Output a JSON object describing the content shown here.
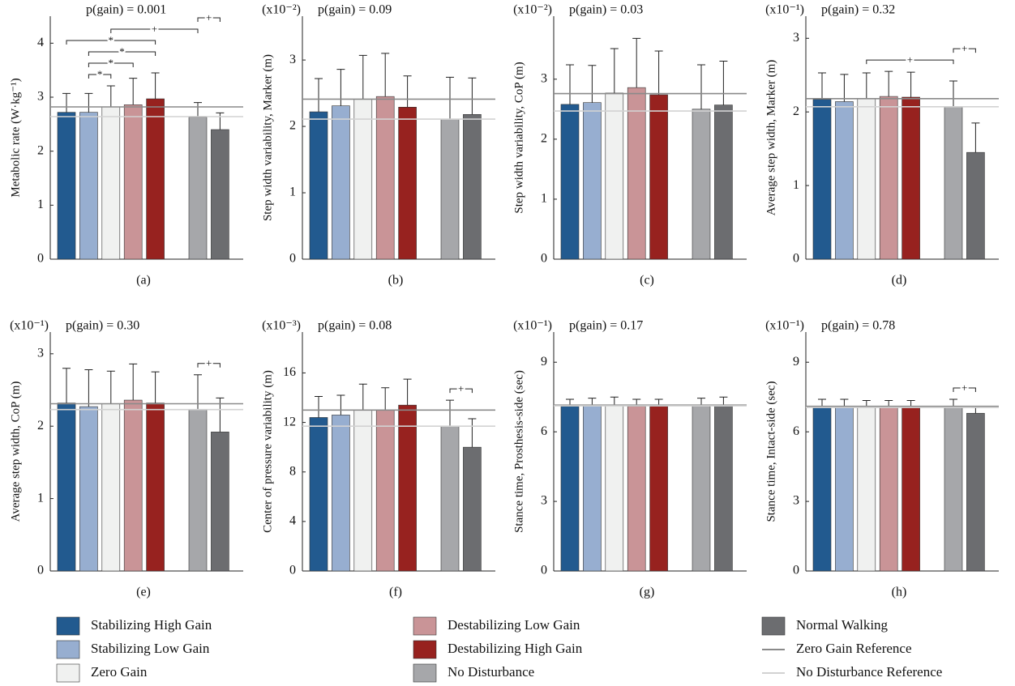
{
  "chart_data": [
    {
      "type": "bar",
      "label": "(a)",
      "title": "p(gain) = 0.001",
      "ylabel": "Metabolic rate  (W·kg⁻¹)",
      "values": [
        2.72,
        2.72,
        2.82,
        2.86,
        2.97,
        2.63,
        2.4
      ],
      "errors": [
        0.35,
        0.35,
        0.39,
        0.49,
        0.48,
        0.27,
        0.31
      ],
      "reference_lines": [
        2.82,
        2.64
      ],
      "ylim": [
        0,
        4.5
      ],
      "yticks": [
        0,
        1,
        2,
        3,
        4
      ],
      "brackets": [
        {
          "bars": [
            1,
            2
          ],
          "label": "*"
        },
        {
          "bars": [
            1,
            3
          ],
          "label": "*"
        },
        {
          "bars": [
            1,
            4
          ],
          "label": "*"
        },
        {
          "bars": [
            0,
            4
          ],
          "label": "*"
        },
        {
          "bars": [
            2,
            5
          ],
          "label": "+"
        },
        {
          "bars": [
            5,
            6
          ],
          "label": "+"
        }
      ]
    },
    {
      "type": "bar",
      "label": "(b)",
      "multiplier": "(x10⁻²)",
      "title": "p(gain) = 0.09",
      "ylabel": "Step width variability, Marker  (m)",
      "values": [
        2.22,
        2.31,
        2.41,
        2.45,
        2.29,
        2.11,
        2.18
      ],
      "errors": [
        0.5,
        0.55,
        0.66,
        0.65,
        0.47,
        0.63,
        0.55
      ],
      "reference_lines": [
        2.41,
        2.11
      ],
      "ylim": [
        0,
        3.66
      ],
      "yticks": [
        0,
        1,
        2,
        3
      ],
      "brackets": []
    },
    {
      "type": "bar",
      "label": "(c)",
      "multiplier": "(x10⁻²)",
      "title": "p(gain) = 0.03",
      "ylabel": "Step width variability, CoP  (m)",
      "values": [
        2.58,
        2.61,
        2.77,
        2.86,
        2.74,
        2.5,
        2.57
      ],
      "errors": [
        0.66,
        0.62,
        0.74,
        0.82,
        0.73,
        0.74,
        0.73
      ],
      "reference_lines": [
        2.76,
        2.47
      ],
      "ylim": [
        0,
        4.05
      ],
      "yticks": [
        0,
        1,
        2,
        3
      ],
      "brackets": []
    },
    {
      "type": "bar",
      "label": "(d)",
      "multiplier": "(x10⁻¹)",
      "title": "p(gain) = 0.32",
      "ylabel": "Average step width, Marker (m)",
      "values": [
        2.17,
        2.14,
        2.18,
        2.21,
        2.2,
        2.07,
        1.45
      ],
      "errors": [
        0.36,
        0.37,
        0.35,
        0.34,
        0.34,
        0.35,
        0.4
      ],
      "reference_lines": [
        2.18,
        2.07
      ],
      "ylim": [
        0,
        3.3
      ],
      "yticks": [
        0,
        1,
        2,
        3
      ],
      "brackets": [
        {
          "bars": [
            2,
            5
          ],
          "label": "+"
        },
        {
          "bars": [
            5,
            6
          ],
          "label": "+"
        }
      ]
    },
    {
      "type": "bar",
      "label": "(e)",
      "multiplier": "(x10⁻¹)",
      "title": "p(gain) = 0.30",
      "ylabel": "Average step width, CoP (m)",
      "values": [
        2.32,
        2.27,
        2.31,
        2.36,
        2.32,
        2.23,
        1.92
      ],
      "errors": [
        0.48,
        0.51,
        0.45,
        0.5,
        0.43,
        0.48,
        0.47
      ],
      "reference_lines": [
        2.31,
        2.23
      ],
      "ylim": [
        0,
        3.3
      ],
      "yticks": [
        0,
        1,
        2,
        3
      ],
      "brackets": [
        {
          "bars": [
            5,
            6
          ],
          "label": "+"
        }
      ]
    },
    {
      "type": "bar",
      "label": "(f)",
      "multiplier": "(x10⁻³)",
      "title": "p(gain) = 0.08",
      "ylabel": "Center of pressure variability (m)",
      "values": [
        12.4,
        12.6,
        13.0,
        13.0,
        13.4,
        11.7,
        10.0
      ],
      "errors": [
        1.7,
        1.6,
        2.1,
        1.8,
        2.1,
        2.1,
        2.3
      ],
      "reference_lines": [
        13.0,
        11.7
      ],
      "ylim": [
        0,
        19.3
      ],
      "yticks": [
        0,
        4,
        8,
        12,
        16
      ],
      "brackets": [
        {
          "bars": [
            5,
            6
          ],
          "label": "+"
        }
      ]
    },
    {
      "type": "bar",
      "label": "(g)",
      "multiplier": "(x10⁻¹)",
      "title": "p(gain) = 0.17",
      "ylabel": "Stance time, Prosthesis-side (sec)",
      "values": [
        7.1,
        7.15,
        7.15,
        7.1,
        7.1,
        7.15,
        7.15
      ],
      "errors": [
        0.3,
        0.3,
        0.35,
        0.3,
        0.3,
        0.3,
        0.35
      ],
      "reference_lines": [
        7.15,
        7.12
      ],
      "ylim": [
        0,
        10.3
      ],
      "yticks": [
        0,
        3,
        6,
        9
      ],
      "brackets": []
    },
    {
      "type": "bar",
      "label": "(h)",
      "multiplier": "(x10⁻¹)",
      "title": "p(gain) = 0.78",
      "ylabel": "Stance time, Intact-side (sec)",
      "values": [
        7.1,
        7.1,
        7.05,
        7.05,
        7.05,
        7.1,
        6.8
      ],
      "errors": [
        0.3,
        0.3,
        0.3,
        0.3,
        0.3,
        0.3,
        0.25
      ],
      "reference_lines": [
        7.1,
        7.05
      ],
      "ylim": [
        0,
        10.3
      ],
      "yticks": [
        0,
        3,
        6,
        9
      ],
      "brackets": [
        {
          "bars": [
            5,
            6
          ],
          "label": "+"
        }
      ]
    }
  ],
  "legend": {
    "bars": [
      {
        "name": "Stabilizing High Gain",
        "color": "#225a8f"
      },
      {
        "name": "Stabilizing Low Gain",
        "color": "#97aed0"
      },
      {
        "name": "Zero Gain",
        "color": "#f0f1f0"
      },
      {
        "name": "Destabilizing Low Gain",
        "color": "#c99497"
      },
      {
        "name": "Destabilizing High Gain",
        "color": "#97221f"
      },
      {
        "name": "No Disturbance",
        "color": "#a6a7aa"
      },
      {
        "name": "Normal Walking",
        "color": "#6c6d70"
      }
    ],
    "lines": [
      {
        "name": "Zero Gain Reference",
        "color": "#8a8a8a"
      },
      {
        "name": "No Disturbance Reference",
        "color": "#d2d2d2"
      }
    ]
  }
}
